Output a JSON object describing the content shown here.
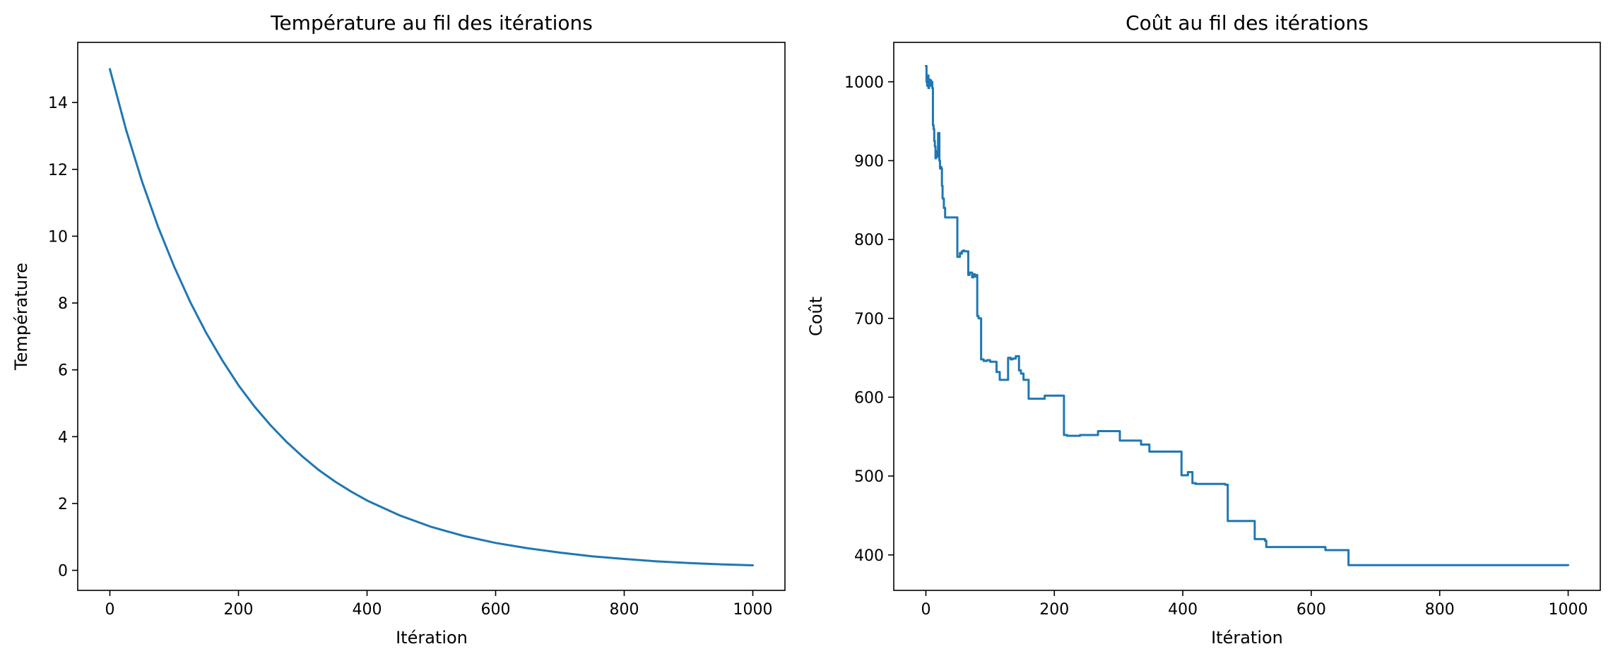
{
  "chart_data": [
    {
      "type": "line",
      "title": "Température au fil des itérations",
      "xlabel": "Itération",
      "ylabel": "Température",
      "xlim": [
        -50,
        1050
      ],
      "ylim": [
        -0.6,
        15.8
      ],
      "xticks": [
        0,
        200,
        400,
        600,
        800,
        1000
      ],
      "xtick_labels": [
        "0",
        "200",
        "400",
        "600",
        "800",
        "1000"
      ],
      "yticks": [
        0,
        2,
        4,
        6,
        8,
        10,
        12,
        14
      ],
      "ytick_labels": [
        "0",
        "2",
        "4",
        "6",
        "8",
        "10",
        "12",
        "14"
      ],
      "grid": false,
      "color": "#1f77b4",
      "series": [
        {
          "x": [
            0,
            25,
            50,
            75,
            100,
            125,
            150,
            175,
            200,
            225,
            250,
            275,
            300,
            325,
            350,
            375,
            400,
            450,
            500,
            550,
            600,
            650,
            700,
            750,
            800,
            850,
            900,
            950,
            1000
          ],
          "y": [
            15.0,
            13.2,
            11.64,
            10.28,
            9.09,
            8.03,
            7.1,
            6.28,
            5.54,
            4.9,
            4.34,
            3.84,
            3.4,
            3.0,
            2.66,
            2.36,
            2.09,
            1.65,
            1.3,
            1.03,
            0.82,
            0.66,
            0.53,
            0.42,
            0.34,
            0.27,
            0.22,
            0.18,
            0.15
          ]
        }
      ]
    },
    {
      "type": "line",
      "title": "Coût au fil des itérations",
      "xlabel": "Itération",
      "ylabel": "Coût",
      "xlim": [
        -50,
        1050
      ],
      "ylim": [
        355,
        1050
      ],
      "xticks": [
        0,
        200,
        400,
        600,
        800,
        1000
      ],
      "xtick_labels": [
        "0",
        "200",
        "400",
        "600",
        "800",
        "1000"
      ],
      "yticks": [
        400,
        500,
        600,
        700,
        800,
        900,
        1000
      ],
      "ytick_labels": [
        "400",
        "500",
        "600",
        "700",
        "800",
        "900",
        "1000"
      ],
      "grid": false,
      "color": "#1f77b4",
      "series": [
        {
          "x": [
            0,
            1,
            2,
            3,
            4,
            5,
            6,
            7,
            8,
            9,
            10,
            11,
            12,
            13,
            14,
            15,
            16,
            17,
            18,
            19,
            20,
            21,
            22,
            23,
            24,
            25,
            26,
            27,
            28,
            30,
            31,
            33,
            48,
            49,
            52,
            53,
            55,
            56,
            58,
            60,
            66,
            68,
            70,
            72,
            74,
            76,
            78,
            80,
            82,
            84,
            86,
            88,
            90,
            95,
            100,
            110,
            115,
            125,
            128,
            132,
            135,
            140,
            145,
            148,
            152,
            160,
            170,
            185,
            190,
            212,
            215,
            220,
            225,
            240,
            265,
            268,
            280,
            300,
            302,
            325,
            335,
            345,
            348,
            355,
            398,
            400,
            408,
            410,
            415,
            420,
            430,
            450,
            465,
            466,
            470,
            510,
            512,
            528,
            530,
            620,
            622,
            655,
            658,
            1000
          ],
          "y": [
            1020,
            1000,
            995,
            1008,
            992,
            1003,
            995,
            1002,
            996,
            1000,
            992,
            945,
            940,
            925,
            918,
            903,
            910,
            912,
            905,
            935,
            935,
            900,
            890,
            892,
            890,
            868,
            852,
            852,
            840,
            828,
            828,
            828,
            828,
            778,
            778,
            783,
            782,
            785,
            786,
            785,
            755,
            758,
            758,
            752,
            756,
            753,
            755,
            703,
            700,
            700,
            648,
            648,
            646,
            647,
            645,
            632,
            622,
            622,
            650,
            648,
            649,
            652,
            634,
            630,
            622,
            598,
            598,
            602,
            602,
            602,
            552,
            551,
            551,
            552,
            552,
            557,
            557,
            557,
            545,
            545,
            540,
            540,
            531,
            531,
            501,
            501,
            505,
            505,
            491,
            490,
            490,
            490,
            490,
            489,
            443,
            443,
            420,
            418,
            410,
            410,
            406,
            406,
            387,
            387
          ]
        }
      ]
    }
  ]
}
